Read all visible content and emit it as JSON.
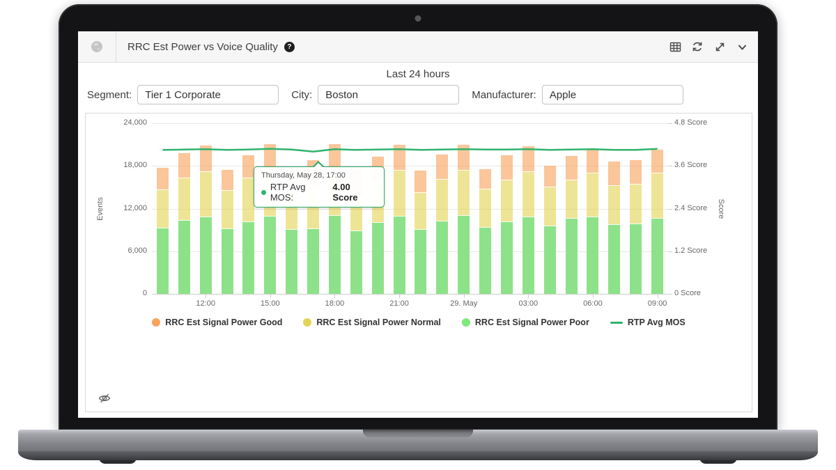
{
  "widget": {
    "title": "RRC Est Power vs Voice Quality",
    "help_badge": "?",
    "subtitle": "Last 24 hours"
  },
  "filters": [
    {
      "label": "Segment:",
      "value": "Tier 1 Corporate"
    },
    {
      "label": "City:",
      "value": "Boston"
    },
    {
      "label": "Manufacturer:",
      "value": "Apple"
    }
  ],
  "tooltip": {
    "date": "Thursday, May 28, 17:00",
    "series_label": "RTP Avg MOS:",
    "value": "4.00 Score"
  },
  "toolbar": {
    "icons": [
      "table-icon",
      "refresh-icon",
      "expand-icon",
      "chevron-down-icon"
    ]
  },
  "colors": {
    "line": "#2fb36d",
    "tooltip_border": "#2fa868",
    "good": "#f7a35c",
    "normal": "#e4d354",
    "poor": "#7ee87a",
    "good_fill": "rgba(247,163,92,0.62)",
    "normal_fill": "rgba(228,211,84,0.62)",
    "poor_fill": "#8de289",
    "grid": "#e7e7e7",
    "axis": "#cccccc",
    "axis_text": "#666666"
  },
  "chart_data": {
    "type": "bar",
    "subtype": "stacked-columns-with-line",
    "categories": [
      "10:00",
      "11:00",
      "12:00",
      "13:00",
      "14:00",
      "15:00",
      "16:00",
      "17:00",
      "18:00",
      "19:00",
      "20:00",
      "21:00",
      "22:00",
      "23:00",
      "29. May",
      "01:00",
      "02:00",
      "03:00",
      "04:00",
      "05:00",
      "06:00",
      "07:00",
      "08:00",
      "09:00"
    ],
    "xtick_labels": [
      "12:00",
      "15:00",
      "18:00",
      "21:00",
      "29. May",
      "03:00",
      "06:00",
      "09:00"
    ],
    "xtick_indexes": [
      2,
      5,
      8,
      11,
      14,
      17,
      20,
      23
    ],
    "ylabel_left": "Events",
    "ylabel_right": "Score",
    "ylim_left": [
      0,
      24000
    ],
    "ylim_right": [
      0,
      4.8
    ],
    "yticks_left_values": [
      0,
      6000,
      12000,
      18000,
      24000
    ],
    "yticks_left_labels": [
      "0",
      "6,000",
      "12,000",
      "18,000",
      "24,000"
    ],
    "yticks_right_labels": [
      "0 Score",
      "1.2 Score",
      "2.4 Score",
      "3.6 Score",
      "4.8 Score"
    ],
    "grid": true,
    "legend_position": "bottom",
    "series": [
      {
        "name": "RRC Est Signal Power Good",
        "type": "column",
        "stack_position": "top",
        "color": "#f7a35c",
        "fill": "rgba(247,163,92,0.62)",
        "values": [
          3100,
          3500,
          3800,
          2900,
          3200,
          3900,
          3300,
          4100,
          3900,
          3800,
          3400,
          3700,
          3100,
          3500,
          3700,
          2800,
          3500,
          3700,
          3000,
          3400,
          3500,
          3400,
          3400,
          3400
        ]
      },
      {
        "name": "RRC Est Signal Power Normal",
        "type": "column",
        "stack_position": "middle",
        "color": "#e4d354",
        "fill": "rgba(228,211,84,0.62)",
        "values": [
          5400,
          6000,
          6300,
          5400,
          6200,
          6300,
          5300,
          5600,
          6200,
          4900,
          5900,
          6400,
          5200,
          5900,
          6300,
          5400,
          5900,
          6300,
          5500,
          5400,
          6100,
          5500,
          5600,
          6300
        ]
      },
      {
        "name": "RRC Est Signal Power Poor",
        "type": "column",
        "stack_position": "bottom",
        "color": "#7ee87a",
        "fill": "#8de289",
        "values": [
          9300,
          10400,
          10900,
          9200,
          10200,
          11000,
          9100,
          9200,
          11100,
          8900,
          10100,
          11000,
          9100,
          10300,
          11100,
          9400,
          10200,
          10900,
          9600,
          10700,
          10900,
          9800,
          9900,
          10700
        ]
      },
      {
        "name": "RTP Avg MOS",
        "type": "line",
        "axis": "right",
        "color": "#2fb36d",
        "values": [
          4.05,
          4.06,
          4.07,
          4.05,
          4.06,
          4.08,
          4.06,
          4.0,
          4.07,
          4.05,
          4.06,
          4.07,
          4.05,
          4.06,
          4.07,
          4.06,
          4.06,
          4.07,
          4.05,
          4.06,
          4.07,
          4.05,
          4.05,
          4.08
        ]
      }
    ]
  }
}
